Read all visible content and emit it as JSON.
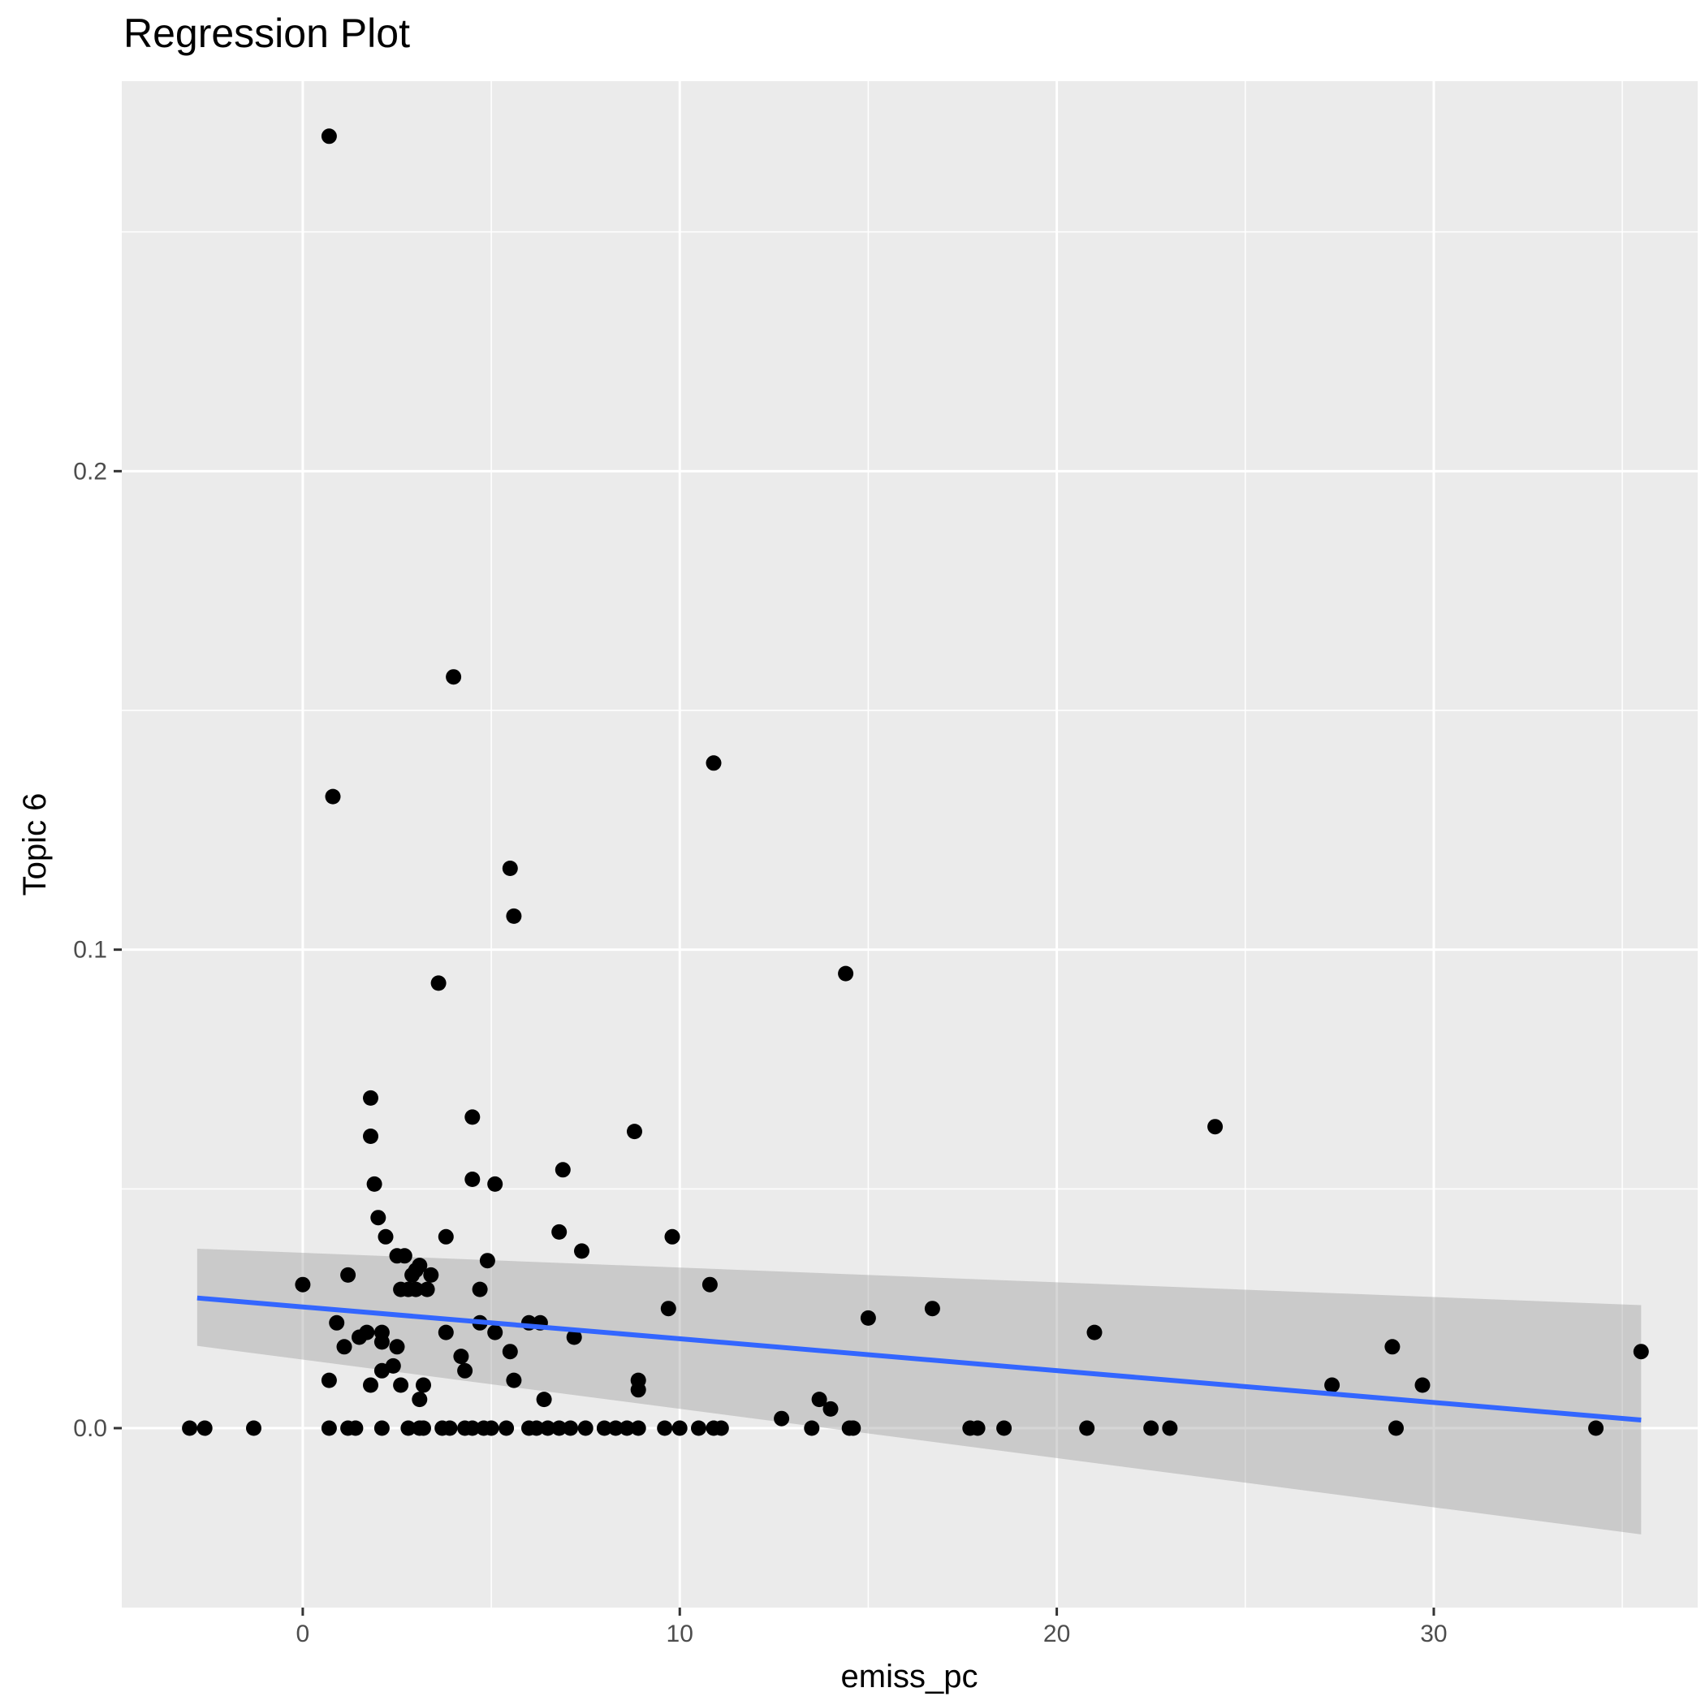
{
  "chart_data": {
    "type": "scatter",
    "title": "Regression Plot",
    "xlabel": "emiss_pc",
    "ylabel": "Topic 6",
    "xlim": [
      -4.8,
      37.0
    ],
    "ylim": [
      -0.0375,
      0.2815
    ],
    "x_ticks": [
      0,
      10,
      20,
      30
    ],
    "x_tick_labels": [
      "0",
      "10",
      "20",
      "30"
    ],
    "x_minor_ticks": [
      -5,
      5,
      15,
      25,
      35
    ],
    "y_ticks": [
      0.0,
      0.1,
      0.2
    ],
    "y_tick_labels": [
      "0.0",
      "0.1",
      "0.2"
    ],
    "y_minor_ticks": [
      0.05,
      0.15,
      0.25
    ],
    "grid": true,
    "legend": "none",
    "colors": {
      "panel_background": "#ebebeb",
      "grid": "#ffffff",
      "points": "#000000",
      "regression_line": "#3366ff",
      "confidence_band": "#999999"
    },
    "points": {
      "x": [
        0.7,
        4.0,
        0.8,
        10.9,
        5.5,
        5.6,
        14.4,
        3.6,
        1.8,
        4.5,
        8.8,
        24.2,
        1.8,
        6.9,
        1.9,
        4.5,
        5.1,
        2.0,
        3.8,
        2.2,
        6.8,
        9.8,
        7.4,
        2.5,
        2.7,
        4.9,
        3.1,
        3.0,
        2.9,
        3.4,
        1.2,
        0.0,
        10.8,
        4.7,
        2.6,
        3.3,
        2.8,
        3.0,
        9.7,
        16.7,
        15.0,
        6.0,
        6.3,
        0.9,
        4.7,
        3.8,
        5.1,
        21.0,
        1.5,
        1.7,
        7.2,
        2.1,
        1.1,
        2.1,
        2.5,
        5.5,
        4.2,
        2.4,
        2.1,
        4.3,
        0.7,
        8.9,
        5.6,
        1.8,
        2.6,
        3.2,
        8.9,
        28.9,
        29.7,
        27.3,
        35.5,
        6.4,
        3.1,
        13.7,
        14.0,
        12.7,
        -3.0,
        -2.6,
        -1.3,
        0.7,
        1.2,
        1.4,
        2.1,
        2.8,
        3.1,
        3.2,
        3.7,
        3.9,
        4.3,
        4.5,
        4.8,
        5.0,
        5.4,
        6.0,
        6.2,
        6.5,
        6.8,
        7.1,
        7.5,
        8.0,
        8.3,
        8.6,
        8.9,
        9.6,
        10.0,
        10.5,
        10.9,
        11.1,
        13.5,
        14.5,
        14.6,
        17.7,
        17.9,
        18.6,
        20.8,
        22.5,
        23.0,
        29.0,
        34.3
      ],
      "y": [
        0.27,
        0.157,
        0.132,
        0.139,
        0.117,
        0.107,
        0.095,
        0.093,
        0.069,
        0.065,
        0.062,
        0.063,
        0.061,
        0.054,
        0.051,
        0.052,
        0.051,
        0.044,
        0.04,
        0.04,
        0.041,
        0.04,
        0.037,
        0.036,
        0.036,
        0.035,
        0.034,
        0.033,
        0.032,
        0.032,
        0.032,
        0.03,
        0.03,
        0.029,
        0.029,
        0.029,
        0.029,
        0.029,
        0.025,
        0.025,
        0.023,
        0.022,
        0.022,
        0.022,
        0.022,
        0.02,
        0.02,
        0.02,
        0.019,
        0.02,
        0.019,
        0.02,
        0.017,
        0.018,
        0.017,
        0.016,
        0.015,
        0.013,
        0.012,
        0.012,
        0.01,
        0.01,
        0.01,
        0.009,
        0.009,
        0.009,
        0.008,
        0.017,
        0.009,
        0.009,
        0.016,
        0.006,
        0.006,
        0.006,
        0.004,
        0.002,
        0.0,
        0.0,
        0.0,
        0.0,
        0.0,
        0.0,
        0.0,
        0.0,
        0.0,
        0.0,
        0.0,
        0.0,
        0.0,
        0.0,
        0.0,
        0.0,
        0.0,
        0.0,
        0.0,
        0.0,
        0.0,
        0.0,
        0.0,
        0.0,
        0.0,
        0.0,
        0.0,
        0.0,
        0.0,
        0.0,
        0.0,
        0.0,
        0.0,
        0.0,
        0.0,
        0.0,
        0.0,
        0.0,
        0.0,
        0.0,
        0.0,
        0.0,
        0.0
      ]
    },
    "regression": {
      "x": [
        -2.8,
        35.5
      ],
      "y": [
        0.0272,
        0.0017
      ],
      "band_lower": [
        0.0172,
        -0.0222
      ],
      "band_upper": [
        0.0375,
        0.0257
      ]
    }
  }
}
